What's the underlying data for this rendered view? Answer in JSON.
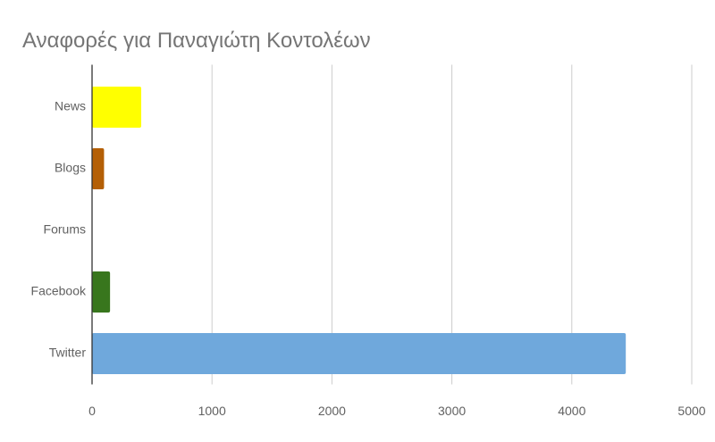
{
  "chart_data": {
    "type": "bar",
    "orientation": "horizontal",
    "title": "Αναφορές για Παναγιώτη Κοντολέων",
    "categories": [
      "News",
      "Blogs",
      "Forums",
      "Facebook",
      "Twitter"
    ],
    "values": [
      410,
      100,
      0,
      150,
      4450
    ],
    "colors": [
      "#ffff00",
      "#b45f06",
      "#999999",
      "#38761d",
      "#6fa8dc"
    ],
    "xlim": [
      0,
      5000
    ],
    "xticks": [
      0,
      1000,
      2000,
      3000,
      4000,
      5000
    ],
    "grid": true
  }
}
